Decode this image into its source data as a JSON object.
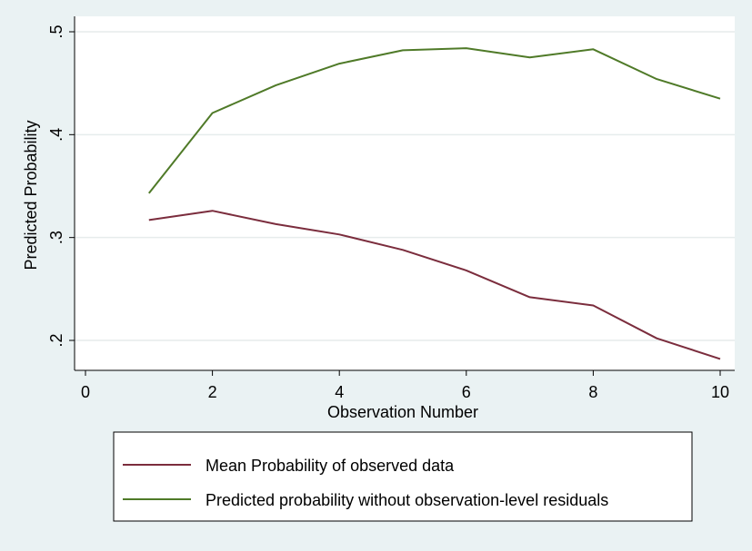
{
  "chart_data": {
    "type": "line",
    "title": "",
    "xlabel": "Observation Number",
    "ylabel": "Predicted Probability",
    "xlim": [
      0,
      10
    ],
    "ylim": [
      0.2,
      0.5
    ],
    "x_ticks": [
      0,
      2,
      4,
      6,
      8,
      10
    ],
    "x_tick_labels": [
      "0",
      "2",
      "4",
      "6",
      "8",
      "10"
    ],
    "y_ticks": [
      0.2,
      0.3,
      0.4,
      0.5
    ],
    "y_tick_labels": [
      ".2",
      ".3",
      ".4",
      ".5"
    ],
    "grid": "horizontal",
    "legend_position": "bottom",
    "x": [
      1,
      2,
      3,
      4,
      5,
      6,
      7,
      8,
      9,
      10
    ],
    "series": [
      {
        "name": "Mean Probability of observed data",
        "color": "#7b2d3d",
        "values": [
          0.317,
          0.326,
          0.313,
          0.303,
          0.288,
          0.268,
          0.242,
          0.234,
          0.202,
          0.182
        ]
      },
      {
        "name": "Predicted probability without observation-level residuals",
        "color": "#4f7a28",
        "values": [
          0.343,
          0.421,
          0.448,
          0.469,
          0.482,
          0.484,
          0.475,
          0.483,
          0.454,
          0.435
        ]
      }
    ]
  }
}
